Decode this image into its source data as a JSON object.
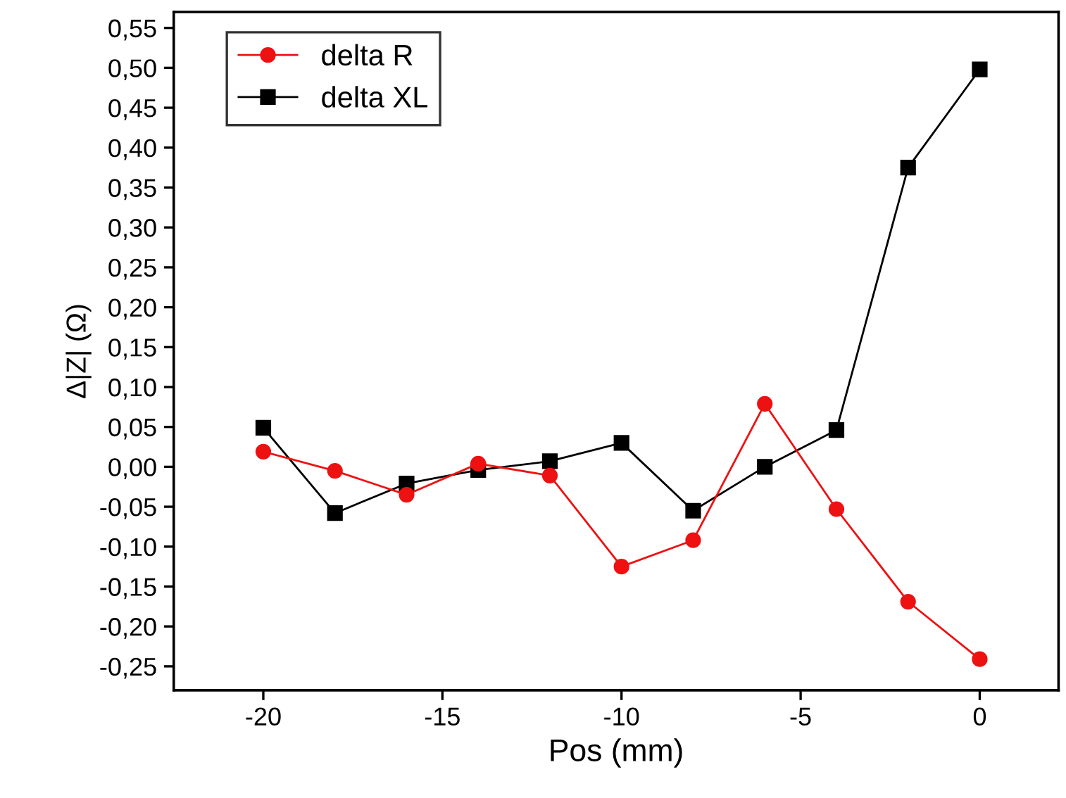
{
  "chart_data": {
    "type": "line",
    "xlabel": "Pos (mm)",
    "ylabel": "Δ|Z| (Ω)",
    "x": [
      -20,
      -18,
      -16,
      -14,
      -12,
      -10,
      -8,
      -6,
      -4,
      -2,
      0
    ],
    "series": [
      {
        "name": "delta R",
        "color": "#ee1111",
        "marker": "circle",
        "values": [
          0.019,
          -0.005,
          -0.035,
          0.004,
          -0.011,
          -0.125,
          -0.092,
          0.079,
          -0.053,
          -0.169,
          -0.241
        ]
      },
      {
        "name": "delta XL",
        "color": "#000000",
        "marker": "square",
        "values": [
          0.049,
          -0.058,
          -0.021,
          -0.004,
          0.007,
          0.03,
          -0.055,
          0.0,
          0.046,
          0.375,
          0.498
        ]
      }
    ],
    "xlim": [
      -22.5,
      2.2
    ],
    "ylim": [
      -0.28,
      0.57
    ],
    "xticks": [
      -20,
      -15,
      -10,
      -5,
      0
    ],
    "yticks": [
      {
        "value": -0.25,
        "label": "-0,25"
      },
      {
        "value": -0.2,
        "label": "-0,20"
      },
      {
        "value": -0.15,
        "label": "-0,15"
      },
      {
        "value": -0.1,
        "label": "-0,10"
      },
      {
        "value": -0.05,
        "label": "-0,05"
      },
      {
        "value": 0.0,
        "label": "0,00"
      },
      {
        "value": 0.05,
        "label": "0,05"
      },
      {
        "value": 0.1,
        "label": "0,10"
      },
      {
        "value": 0.15,
        "label": "0,15"
      },
      {
        "value": 0.2,
        "label": "0,20"
      },
      {
        "value": 0.25,
        "label": "0,25"
      },
      {
        "value": 0.3,
        "label": "0,30"
      },
      {
        "value": 0.35,
        "label": "0,35"
      },
      {
        "value": 0.4,
        "label": "0,40"
      },
      {
        "value": 0.45,
        "label": "0,45"
      },
      {
        "value": 0.5,
        "label": "0,50"
      },
      {
        "value": 0.55,
        "label": "0,55"
      }
    ],
    "grid": false,
    "legend": "top left",
    "line_style": "solid"
  }
}
